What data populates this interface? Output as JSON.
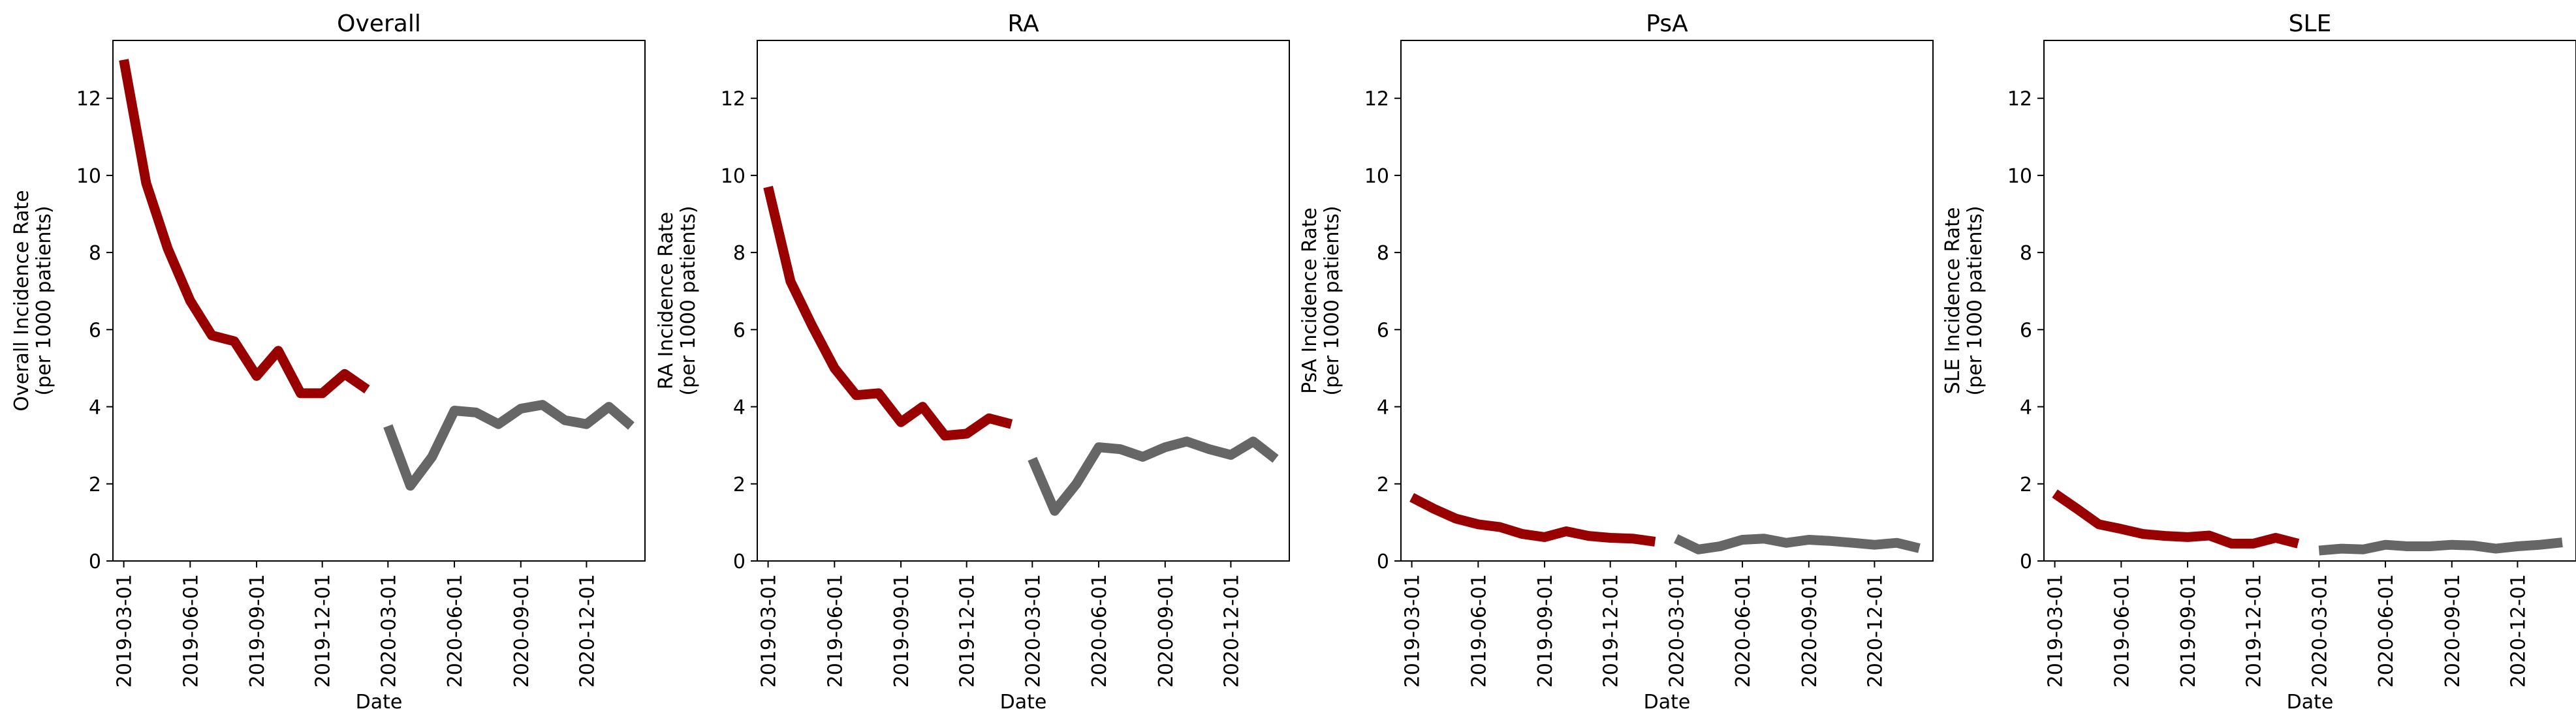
{
  "chart_data": [
    {
      "type": "line",
      "title": "Overall",
      "xlabel": "Date",
      "ylabel": [
        "Overall Incidence Rate",
        "(per 1000 patients)"
      ],
      "ylim": [
        0,
        13.5
      ],
      "yticks": [
        "0",
        "2",
        "4",
        "6",
        "8",
        "10",
        "12"
      ],
      "xticks": [
        "2019-03-01",
        "2019-06-01",
        "2019-09-01",
        "2019-12-01",
        "2020-03-01",
        "2020-06-01",
        "2020-09-01",
        "2020-12-01"
      ],
      "grid": false,
      "series": [
        {
          "color": "#990000",
          "x": [
            "2019-03-01",
            "2019-04-01",
            "2019-05-01",
            "2019-06-01",
            "2019-07-01",
            "2019-08-01",
            "2019-09-01",
            "2019-10-01",
            "2019-11-01",
            "2019-12-01",
            "2020-01-01",
            "2020-02-01"
          ],
          "values": [
            13.0,
            9.8,
            8.1,
            6.75,
            5.85,
            5.7,
            4.8,
            5.45,
            4.35,
            4.35,
            4.85,
            4.45
          ]
        },
        {
          "color": "#666666",
          "x": [
            "2020-03-01",
            "2020-04-01",
            "2020-05-01",
            "2020-06-01",
            "2020-07-01",
            "2020-08-01",
            "2020-09-01",
            "2020-10-01",
            "2020-11-01",
            "2020-12-01",
            "2021-01-01",
            "2021-02-01"
          ],
          "values": [
            3.5,
            1.95,
            2.7,
            3.9,
            3.85,
            3.55,
            3.95,
            4.05,
            3.65,
            3.55,
            4.0,
            3.5
          ]
        }
      ]
    },
    {
      "type": "line",
      "title": "RA",
      "xlabel": "Date",
      "ylabel": [
        "RA Incidence Rate",
        "(per 1000 patients)"
      ],
      "ylim": [
        0,
        13.5
      ],
      "yticks": [
        "0",
        "2",
        "4",
        "6",
        "8",
        "10",
        "12"
      ],
      "xticks": [
        "2019-03-01",
        "2019-06-01",
        "2019-09-01",
        "2019-12-01",
        "2020-03-01",
        "2020-06-01",
        "2020-09-01",
        "2020-12-01"
      ],
      "grid": false,
      "series": [
        {
          "color": "#990000",
          "x": [
            "2019-03-01",
            "2019-04-01",
            "2019-05-01",
            "2019-06-01",
            "2019-07-01",
            "2019-08-01",
            "2019-09-01",
            "2019-10-01",
            "2019-11-01",
            "2019-12-01",
            "2020-01-01",
            "2020-02-01"
          ],
          "values": [
            9.7,
            7.25,
            6.1,
            5.0,
            4.3,
            4.35,
            3.6,
            4.0,
            3.25,
            3.3,
            3.7,
            3.55
          ]
        },
        {
          "color": "#666666",
          "x": [
            "2020-03-01",
            "2020-04-01",
            "2020-05-01",
            "2020-06-01",
            "2020-07-01",
            "2020-08-01",
            "2020-09-01",
            "2020-10-01",
            "2020-11-01",
            "2020-12-01",
            "2021-01-01",
            "2021-02-01"
          ],
          "values": [
            2.65,
            1.3,
            2.0,
            2.95,
            2.9,
            2.7,
            2.95,
            3.1,
            2.9,
            2.75,
            3.1,
            2.65
          ]
        }
      ]
    },
    {
      "type": "line",
      "title": "PsA",
      "xlabel": "Date",
      "ylabel": [
        "PsA Incidence Rate",
        "(per 1000 patients)"
      ],
      "ylim": [
        0,
        13.5
      ],
      "yticks": [
        "0",
        "2",
        "4",
        "6",
        "8",
        "10",
        "12"
      ],
      "xticks": [
        "2019-03-01",
        "2019-06-01",
        "2019-09-01",
        "2019-12-01",
        "2020-03-01",
        "2020-06-01",
        "2020-09-01",
        "2020-12-01"
      ],
      "grid": false,
      "series": [
        {
          "color": "#990000",
          "x": [
            "2019-03-01",
            "2019-04-01",
            "2019-05-01",
            "2019-06-01",
            "2019-07-01",
            "2019-08-01",
            "2019-09-01",
            "2019-10-01",
            "2019-11-01",
            "2019-12-01",
            "2020-01-01",
            "2020-02-01"
          ],
          "values": [
            1.65,
            1.35,
            1.1,
            0.95,
            0.88,
            0.7,
            0.62,
            0.77,
            0.65,
            0.6,
            0.58,
            0.5
          ]
        },
        {
          "color": "#666666",
          "x": [
            "2020-03-01",
            "2020-04-01",
            "2020-05-01",
            "2020-06-01",
            "2020-07-01",
            "2020-08-01",
            "2020-09-01",
            "2020-10-01",
            "2020-11-01",
            "2020-12-01",
            "2021-01-01",
            "2021-02-01"
          ],
          "values": [
            0.58,
            0.3,
            0.38,
            0.55,
            0.58,
            0.47,
            0.55,
            0.52,
            0.47,
            0.42,
            0.47,
            0.33
          ]
        }
      ]
    },
    {
      "type": "line",
      "title": "SLE",
      "xlabel": "Date",
      "ylabel": [
        "SLE Incidence Rate",
        "(per 1000 patients)"
      ],
      "ylim": [
        0,
        13.5
      ],
      "yticks": [
        "0",
        "2",
        "4",
        "6",
        "8",
        "10",
        "12"
      ],
      "xticks": [
        "2019-03-01",
        "2019-06-01",
        "2019-09-01",
        "2019-12-01",
        "2020-03-01",
        "2020-06-01",
        "2020-09-01",
        "2020-12-01"
      ],
      "grid": false,
      "series": [
        {
          "color": "#990000",
          "x": [
            "2019-03-01",
            "2019-04-01",
            "2019-05-01",
            "2019-06-01",
            "2019-07-01",
            "2019-08-01",
            "2019-09-01",
            "2019-10-01",
            "2019-11-01",
            "2019-12-01",
            "2020-01-01",
            "2020-02-01"
          ],
          "values": [
            1.75,
            1.35,
            0.95,
            0.83,
            0.7,
            0.65,
            0.62,
            0.66,
            0.45,
            0.45,
            0.6,
            0.45
          ]
        },
        {
          "color": "#666666",
          "x": [
            "2020-03-01",
            "2020-04-01",
            "2020-05-01",
            "2020-06-01",
            "2020-07-01",
            "2020-08-01",
            "2020-09-01",
            "2020-10-01",
            "2020-11-01",
            "2020-12-01",
            "2021-01-01",
            "2021-02-01"
          ],
          "values": [
            0.27,
            0.32,
            0.3,
            0.42,
            0.38,
            0.38,
            0.42,
            0.4,
            0.32,
            0.38,
            0.42,
            0.48
          ]
        }
      ]
    }
  ]
}
